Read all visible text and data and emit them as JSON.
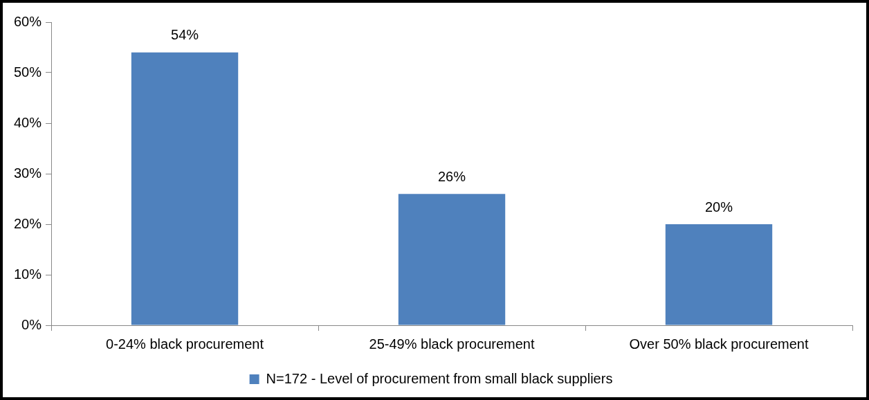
{
  "chart_data": {
    "type": "bar",
    "categories": [
      "0-24% black procurement",
      "25-49% black procurement",
      "Over 50% black procurement"
    ],
    "series": [
      {
        "name": "N=172 - Level of procurement from small black suppliers",
        "color": "#4f81bd",
        "values": [
          54,
          26,
          20
        ],
        "value_labels": [
          "54%",
          "26%",
          "20%"
        ]
      }
    ],
    "ylim": [
      0,
      60
    ],
    "yticks": [
      {
        "value": 0,
        "label": "0%"
      },
      {
        "value": 10,
        "label": "10%"
      },
      {
        "value": 20,
        "label": "20%"
      },
      {
        "value": 30,
        "label": "30%"
      },
      {
        "value": 40,
        "label": "40%"
      },
      {
        "value": 50,
        "label": "50%"
      },
      {
        "value": 60,
        "label": "60%"
      }
    ],
    "legend": "bottom"
  }
}
